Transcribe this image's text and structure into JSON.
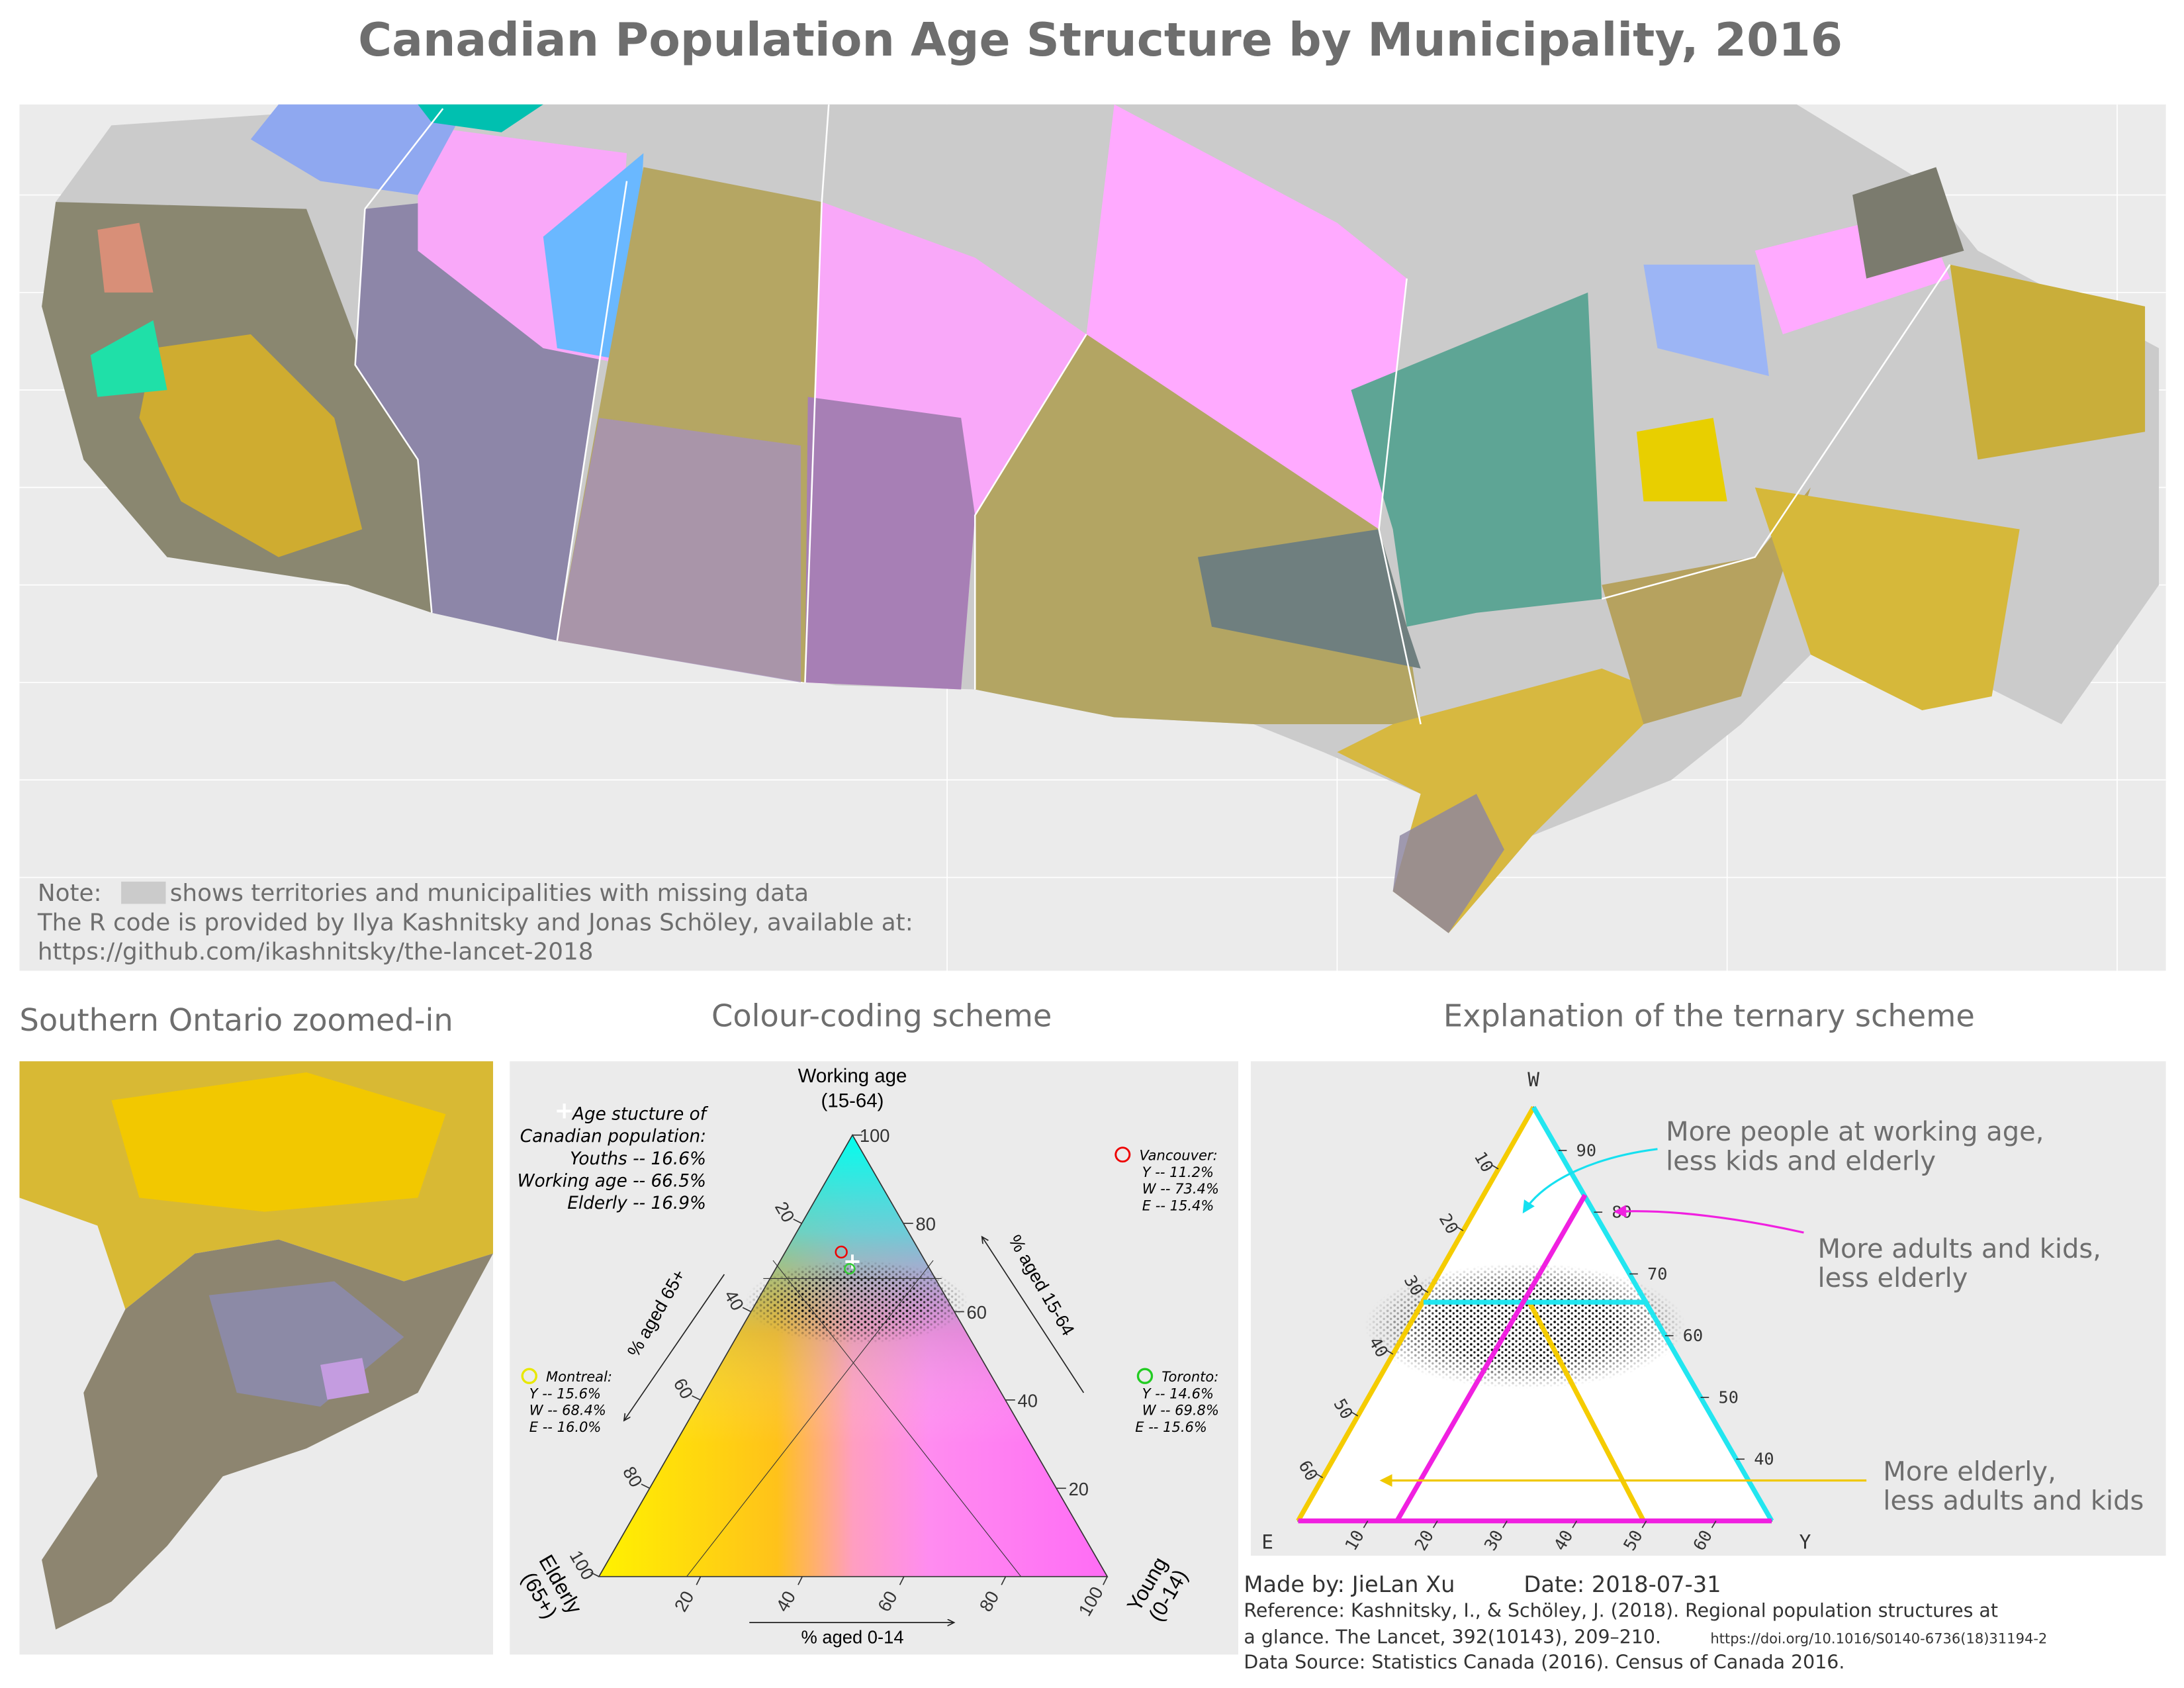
{
  "title": "Canadian Population Age Structure by Municipality, 2016",
  "map": {
    "note_prefix": "Note:",
    "note_text": "shows territories and municipalities with missing data",
    "credit": "The R code is provided by Ilya Kashnitsky and Jonas Schöley, available at:",
    "url": "https://github.com/ikashnitsky/the-lancet-2018"
  },
  "zoom": {
    "title": "Southern Ontario zoomed-in"
  },
  "scheme": {
    "title": "Colour-coding scheme",
    "top_label": "Working age",
    "top_sub": "(15-64)",
    "left_label": "Elderly",
    "left_sub": "(65+)",
    "right_label": "Young",
    "right_sub": "(0-14)",
    "axis_left": "% aged 65+",
    "axis_right": "% aged 15-64",
    "axis_bottom": "% aged 0-14",
    "lim": [
      0,
      100
    ],
    "left_ticks": [
      20,
      40,
      60,
      80,
      100
    ],
    "right_ticks": [
      20,
      40,
      60,
      80,
      100
    ],
    "bottom_ticks": [
      20,
      40,
      60,
      80,
      100
    ],
    "canada": [
      "Age stucture of",
      "Canadian population:",
      "Youths -- 16.6%",
      "Working age -- 66.5%",
      "Elderly -- 16.9%"
    ],
    "vancouver": [
      "Vancouver:",
      "Y --  11.2%",
      "W -- 73.4%",
      "E -- 15.4%"
    ],
    "montreal": [
      "Montreal:",
      "Y -- 15.6%",
      "W -- 68.4%",
      "E --  16.0%"
    ],
    "toronto": [
      "Toronto:",
      "Y -- 14.6%",
      "W -- 69.8%",
      "E --  15.6%"
    ]
  },
  "explain": {
    "title": "Explanation of the ternary scheme",
    "corner_top": "W",
    "corner_left": "E",
    "corner_right": "Y",
    "left_lim": [
      0,
      67
    ],
    "right_lim": [
      97,
      30
    ],
    "bottom_lim": [
      0,
      68
    ],
    "left_ticks": [
      10,
      20,
      30,
      40,
      50,
      60
    ],
    "right_ticks": [
      90,
      80,
      70,
      60,
      50,
      40
    ],
    "bottom_ticks": [
      10,
      20,
      30,
      40,
      50,
      60
    ],
    "note_working": [
      "More people at working age,",
      "less kids and elderly"
    ],
    "note_adults": [
      "More adults and kids,",
      "less elderly"
    ],
    "note_elderly": [
      "More elderly,",
      "less adults and kids"
    ]
  },
  "footer": {
    "made_by": "Made by: JieLan Xu",
    "date": "Date: 2018-07-31",
    "reference_1": "Reference: Kashnitsky, I., & Schöley, J. (2018). Regional population structures at",
    "reference_2": "a glance. The Lancet, 392(10143), 209–210.",
    "doi": "https://doi.org/10.1016/S0140-6736(18)31194-2",
    "source": "Data Source: Statistics Canada (2016). Census of Canada 2016."
  }
}
